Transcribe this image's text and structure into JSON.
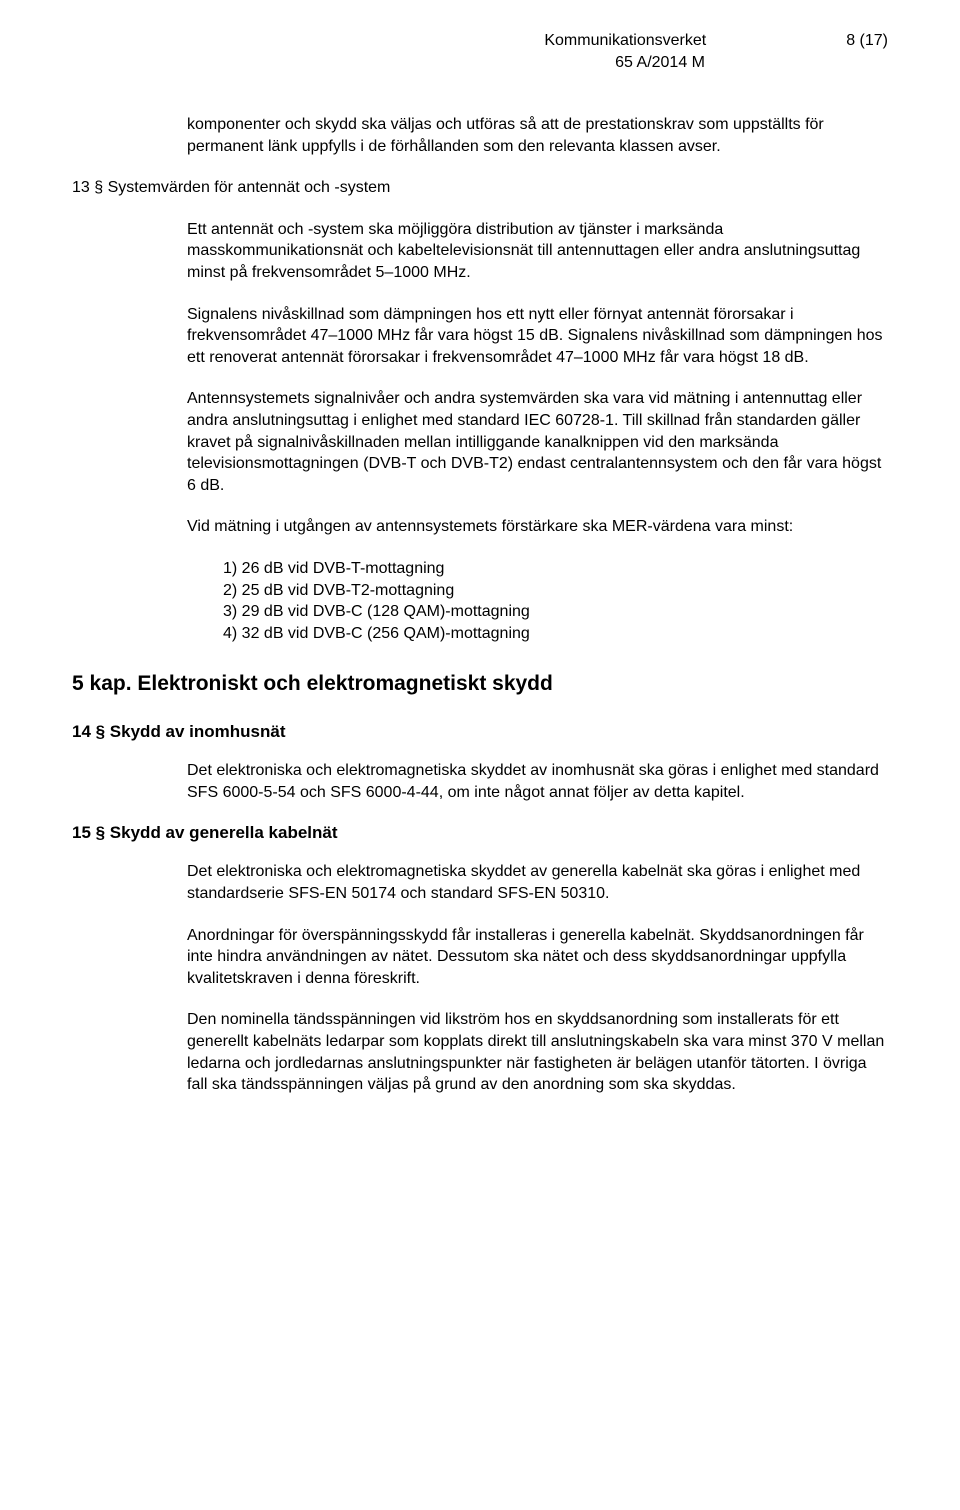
{
  "header": {
    "org": "Kommunikationsverket",
    "page": "8 (17)",
    "ref": "65 A/2014 M"
  },
  "p1": "komponenter och skydd ska väljas och utföras så att de prestationskrav som uppställts för permanent länk uppfylls i de förhållanden som den relevanta klassen avser.",
  "s13_title": "13 § Systemvärden för antennät och -system",
  "s13_p1": "Ett antennät och -system ska möjliggöra distribution av tjänster i marksända masskommunikationsnät och kabeltelevisionsnät till antennuttagen eller andra anslutningsuttag minst på frekvensområdet 5–1000 MHz.",
  "s13_p2": "Signalens nivåskillnad som dämpningen hos ett nytt eller förnyat antennät förorsakar i frekvensområdet 47–1000 MHz får vara högst 15 dB. Signalens nivåskillnad som dämpningen hos ett renoverat antennät förorsakar i frekvensområdet 47–1000 MHz får vara högst 18 dB.",
  "s13_p3": "Antennsystemets signalnivåer och andra systemvärden ska vara vid mätning i antennuttag eller andra anslutningsuttag i enlighet med standard IEC 60728-1. Till skillnad från standarden gäller kravet på signalnivåskillnaden mellan intilliggande kanalknippen vid den marksända televisionsmottagningen (DVB-T och DVB-T2) endast centralantennsystem och den får vara högst 6 dB.",
  "s13_p4": "Vid mätning i utgången av antennsystemets förstärkare ska MER-värdena vara minst:",
  "s13_list": {
    "i1": "1) 26 dB vid DVB-T-mottagning",
    "i2": "2) 25 dB vid DVB-T2-mottagning",
    "i3": "3) 29 dB vid DVB-C (128 QAM)-mottagning",
    "i4": "4) 32 dB vid DVB-C (256 QAM)-mottagning"
  },
  "ch5_title": "5 kap. Elektroniskt och elektromagnetiskt skydd",
  "s14_title": "14 § Skydd av inomhusnät",
  "s14_p1": "Det elektroniska och elektromagnetiska skyddet av inomhusnät ska göras i enlighet med standard SFS 6000-5-54 och SFS 6000-4-44, om inte något annat följer av detta kapitel.",
  "s15_title": "15 § Skydd av generella kabelnät",
  "s15_p1": "Det elektroniska och elektromagnetiska skyddet av generella kabelnät ska göras i enlighet med standardserie SFS-EN 50174 och standard SFS-EN 50310.",
  "s15_p2": "Anordningar för överspänningsskydd får installeras i generella kabelnät. Skyddsanordningen får inte hindra användningen av nätet. Dessutom ska nätet och dess skyddsanordningar uppfylla kvalitetskraven i denna föreskrift.",
  "s15_p3": "Den nominella tändsspänningen vid likström hos en skyddsanordning som installerats för ett generellt kabelnäts ledarpar som kopplats direkt till anslutningskabeln ska vara minst 370 V mellan ledarna och jordledarnas anslutningspunkter när fastigheten är belägen utanför tätorten. I övriga fall ska tändsspänningen väljas på grund av den anordning som ska skyddas."
}
